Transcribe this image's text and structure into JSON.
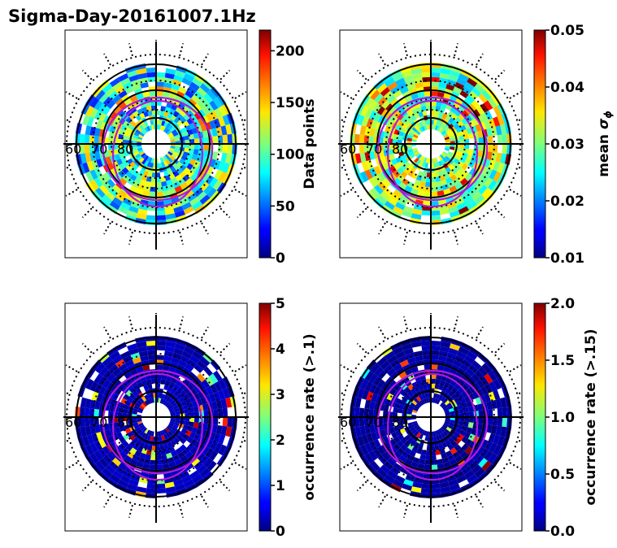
{
  "figure": {
    "title": "Sigma-Day-20161007.1Hz"
  },
  "chart_data": [
    {
      "type": "heatmap",
      "projection": "polar",
      "lat_ring_labels": [
        "60",
        "70",
        "80"
      ],
      "colormap": "jet",
      "colorbar": {
        "label": "Data points",
        "range": [
          0,
          220
        ],
        "ticks": [
          "0",
          "50",
          "100",
          "150",
          "200"
        ],
        "tick_values": [
          0,
          50,
          100,
          150,
          200
        ]
      }
    },
    {
      "type": "heatmap",
      "projection": "polar",
      "lat_ring_labels": [
        "60",
        "70",
        "80"
      ],
      "colormap": "jet",
      "colorbar": {
        "label": "mean",
        "label_symbol": "σ",
        "label_subscript": "ϕ",
        "range": [
          0.01,
          0.05
        ],
        "ticks": [
          "0.01",
          "0.02",
          "0.03",
          "0.04",
          "0.05"
        ],
        "tick_values": [
          0.01,
          0.02,
          0.03,
          0.04,
          0.05
        ]
      }
    },
    {
      "type": "heatmap",
      "projection": "polar",
      "lat_ring_labels": [
        "60",
        "70",
        "80"
      ],
      "colormap": "jet",
      "colorbar": {
        "label": "occurrence rate (>.1)",
        "range": [
          0,
          5
        ],
        "ticks": [
          "0",
          "1",
          "2",
          "3",
          "4",
          "5"
        ],
        "tick_values": [
          0,
          1,
          2,
          3,
          4,
          5
        ]
      }
    },
    {
      "type": "heatmap",
      "projection": "polar",
      "lat_ring_labels": [
        "60",
        "70",
        "80"
      ],
      "colormap": "jet",
      "colorbar": {
        "label": "occurrence rate (>.15)",
        "range": [
          0,
          2
        ],
        "ticks": [
          "0.0",
          "0.5",
          "1.0",
          "1.5",
          "2.0"
        ],
        "tick_values": [
          0,
          0.5,
          1.0,
          1.5,
          2.0
        ]
      }
    }
  ]
}
